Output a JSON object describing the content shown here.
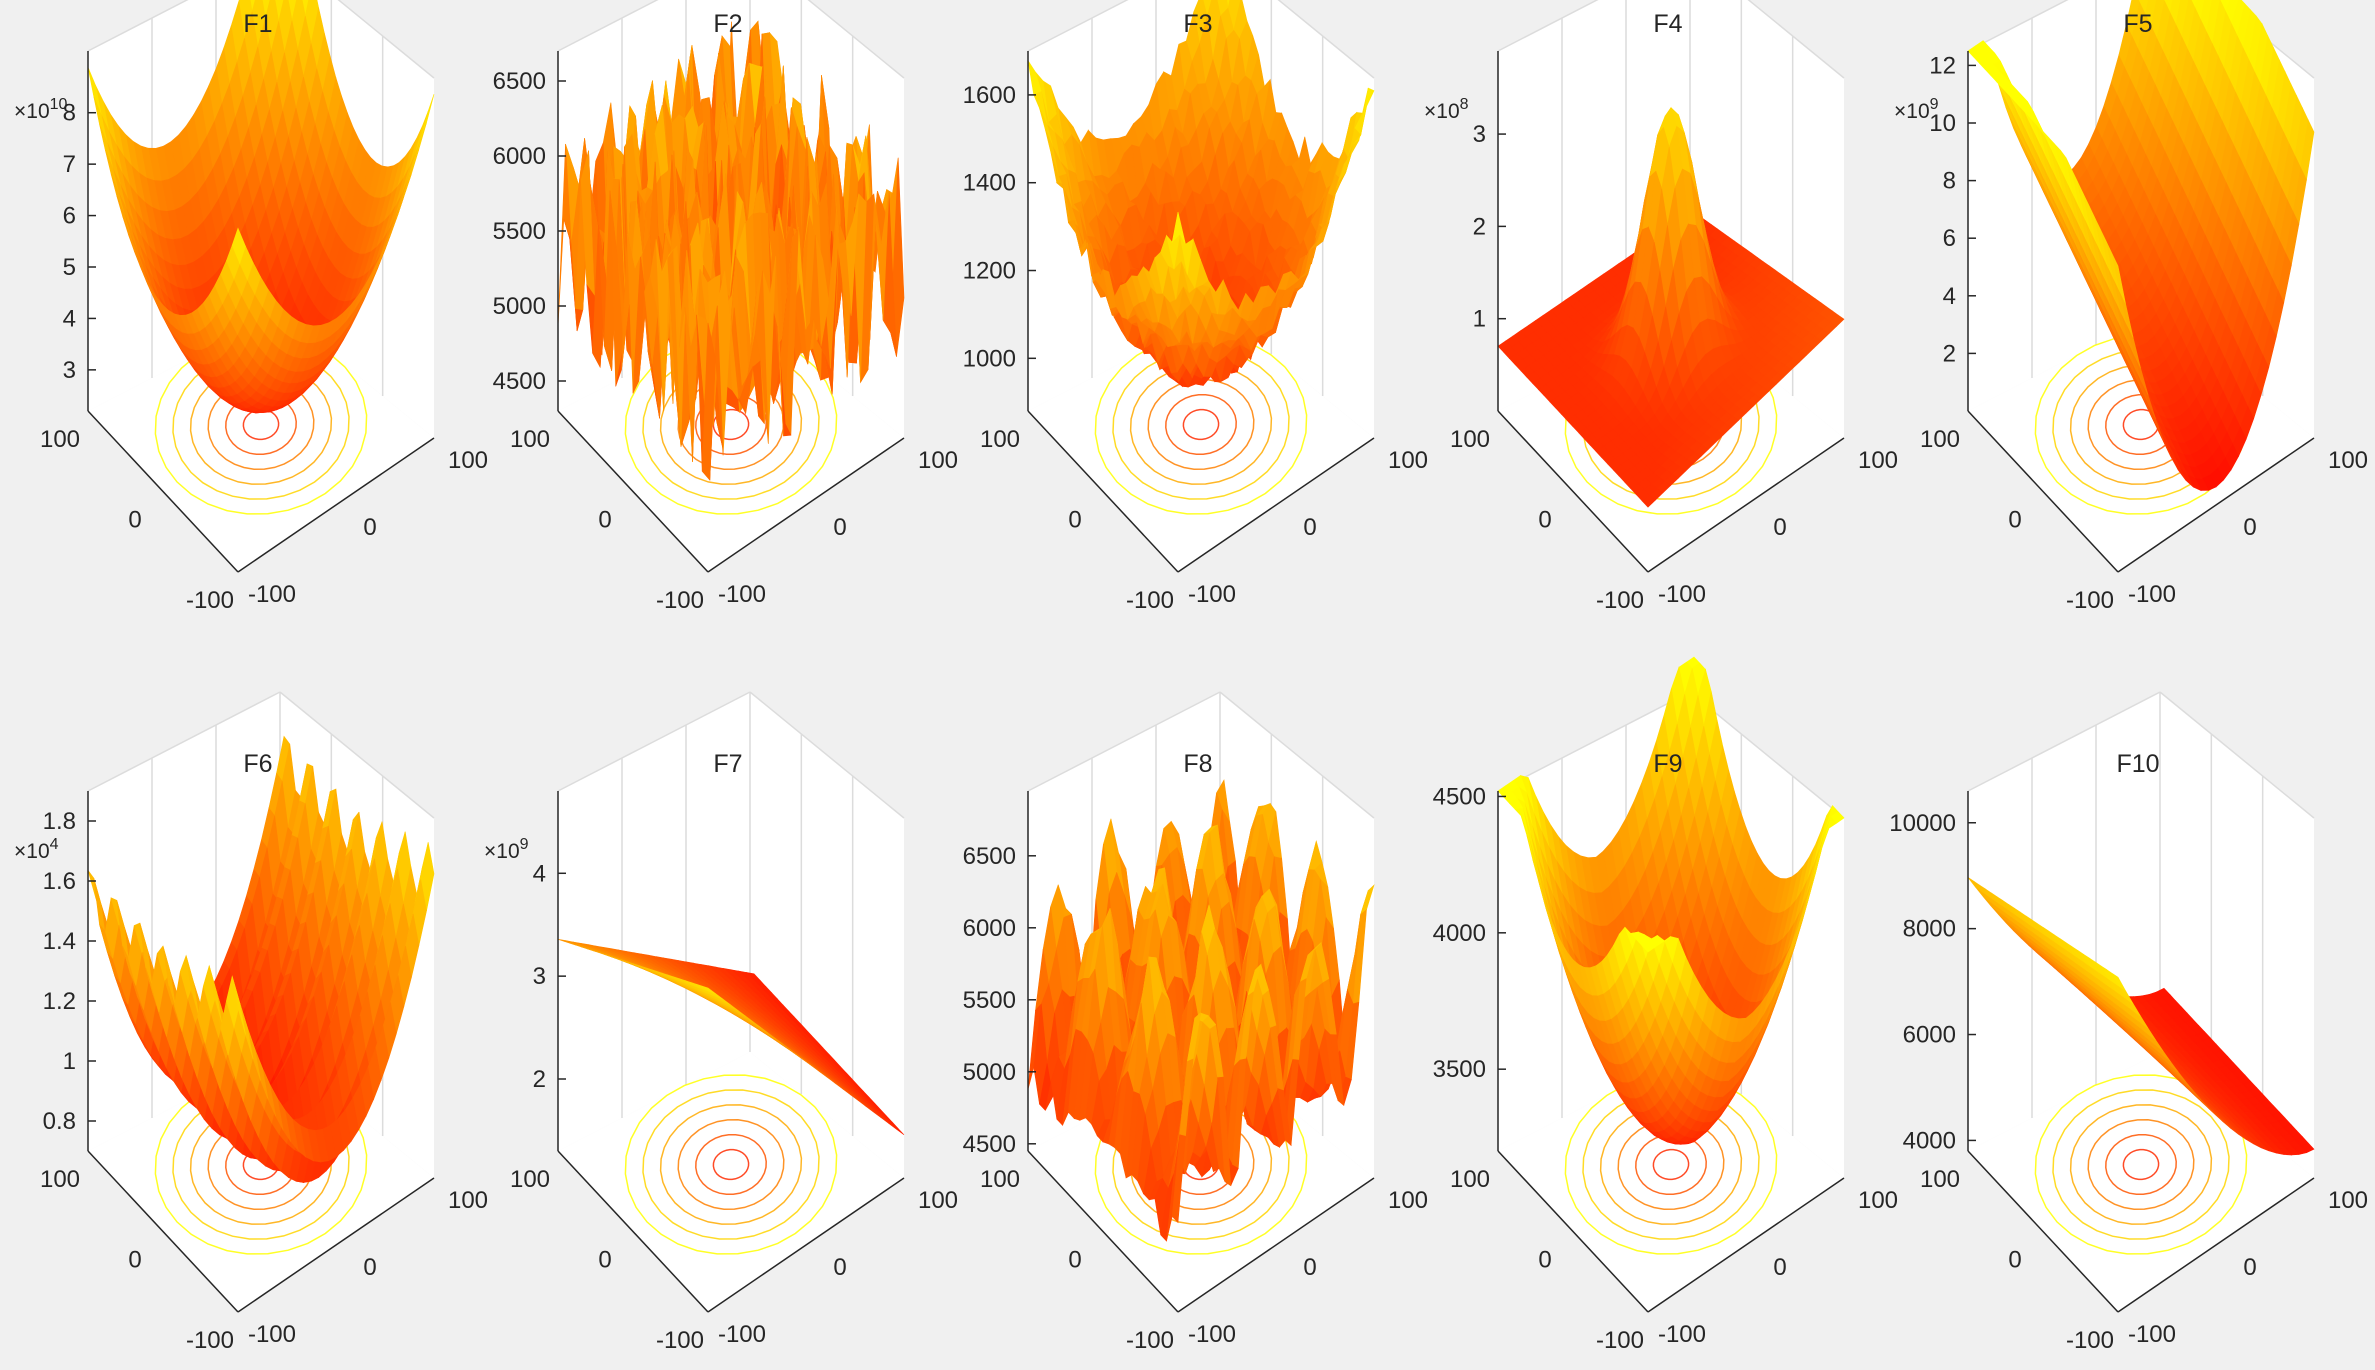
{
  "figure": {
    "background": "#f0f0f0",
    "panel_background": "#ffffff",
    "colormap": "autumn",
    "colors": {
      "low": "#ff0000",
      "high": "#ffff00",
      "axis": "#262626",
      "grid": "#dcdcdc"
    }
  },
  "chart_data": [
    {
      "id": "F1",
      "type": "surface",
      "title": "F1",
      "surface_shape": "bowl",
      "x_range": [
        -100,
        100
      ],
      "y_range": [
        -100,
        100
      ],
      "x_ticks": [
        "-100",
        "0",
        "100"
      ],
      "y_ticks": [
        "-100",
        "0",
        "100"
      ],
      "z_ticks": [
        "3",
        "4",
        "5",
        "6",
        "7",
        "8"
      ],
      "z_exponent": "10",
      "z_range": [
        2.2,
        9.2
      ],
      "contour_floor": true
    },
    {
      "id": "F2",
      "type": "surface",
      "title": "F2",
      "surface_shape": "spiky",
      "x_range": [
        -100,
        100
      ],
      "y_range": [
        -100,
        100
      ],
      "x_ticks": [
        "-100",
        "0",
        "100"
      ],
      "y_ticks": [
        "-100",
        "0",
        "100"
      ],
      "z_ticks": [
        "4500",
        "5000",
        "5500",
        "6000",
        "6500"
      ],
      "z_exponent": "",
      "z_range": [
        4300,
        6700
      ],
      "contour_floor": true
    },
    {
      "id": "F3",
      "type": "surface",
      "title": "F3",
      "surface_shape": "rugged-bowl",
      "x_range": [
        -100,
        100
      ],
      "y_range": [
        -100,
        100
      ],
      "x_ticks": [
        "-100",
        "0",
        "100"
      ],
      "y_ticks": [
        "-100",
        "0",
        "100"
      ],
      "z_ticks": [
        "1000",
        "1200",
        "1400",
        "1600"
      ],
      "z_exponent": "",
      "z_range": [
        880,
        1700
      ],
      "contour_floor": true
    },
    {
      "id": "F4",
      "type": "surface",
      "title": "F4",
      "surface_shape": "peaked",
      "x_range": [
        -100,
        100
      ],
      "y_range": [
        -100,
        100
      ],
      "x_ticks": [
        "-100",
        "0",
        "100"
      ],
      "y_ticks": [
        "-100",
        "0",
        "100"
      ],
      "z_ticks": [
        "1",
        "2",
        "3"
      ],
      "z_exponent": "8",
      "z_range": [
        0,
        3.9
      ],
      "contour_floor": true
    },
    {
      "id": "F5",
      "type": "surface",
      "title": "F5",
      "surface_shape": "valley",
      "x_range": [
        -100,
        100
      ],
      "y_range": [
        -100,
        100
      ],
      "x_ticks": [
        "-100",
        "0",
        "100"
      ],
      "y_ticks": [
        "-100",
        "0",
        "100"
      ],
      "z_ticks": [
        "2",
        "4",
        "6",
        "8",
        "10",
        "12"
      ],
      "z_exponent": "9",
      "z_range": [
        0,
        12.5
      ],
      "contour_floor": true
    },
    {
      "id": "F6",
      "type": "surface",
      "title": "F6",
      "surface_shape": "wavy-valley",
      "x_range": [
        -100,
        100
      ],
      "y_range": [
        -100,
        100
      ],
      "x_ticks": [
        "-100",
        "0",
        "100"
      ],
      "y_ticks": [
        "-100",
        "0",
        "100"
      ],
      "z_ticks": [
        "0.8",
        "1",
        "1.2",
        "1.4",
        "1.6",
        "1.8"
      ],
      "z_exponent": "4",
      "z_range": [
        0.7,
        1.9
      ],
      "contour_floor": true
    },
    {
      "id": "F7",
      "type": "surface",
      "title": "F7",
      "surface_shape": "plane",
      "x_range": [
        -100,
        100
      ],
      "y_range": [
        -100,
        100
      ],
      "x_ticks": [
        "-100",
        "0",
        "100"
      ],
      "y_ticks": [
        "-100",
        "0",
        "100"
      ],
      "z_ticks": [
        "2",
        "3",
        "4"
      ],
      "z_exponent": "9",
      "z_range": [
        1.3,
        4.8
      ],
      "contour_floor": true
    },
    {
      "id": "F8",
      "type": "surface",
      "title": "F8",
      "surface_shape": "multimodal",
      "x_range": [
        -100,
        100
      ],
      "y_range": [
        -100,
        100
      ],
      "x_ticks": [
        "-100",
        "0",
        "100"
      ],
      "y_ticks": [
        "-100",
        "0",
        "100"
      ],
      "z_ticks": [
        "4500",
        "5000",
        "5500",
        "6000",
        "6500"
      ],
      "z_exponent": "",
      "z_range": [
        4450,
        6950
      ],
      "contour_floor": true
    },
    {
      "id": "F9",
      "type": "surface",
      "title": "F9",
      "surface_shape": "smooth-bowl",
      "x_range": [
        -100,
        100
      ],
      "y_range": [
        -100,
        100
      ],
      "x_ticks": [
        "-100",
        "0",
        "100"
      ],
      "y_ticks": [
        "-100",
        "0",
        "100"
      ],
      "z_ticks": [
        "3500",
        "4000",
        "4500"
      ],
      "z_exponent": "",
      "z_range": [
        3200,
        4520
      ],
      "contour_floor": true
    },
    {
      "id": "F10",
      "type": "surface",
      "title": "F10",
      "surface_shape": "sloped-sheet",
      "x_range": [
        -100,
        100
      ],
      "y_range": [
        -100,
        100
      ],
      "x_ticks": [
        "-100",
        "0",
        "100"
      ],
      "y_ticks": [
        "-100",
        "0",
        "100"
      ],
      "z_ticks": [
        "4000",
        "6000",
        "8000",
        "10000"
      ],
      "z_exponent": "",
      "z_range": [
        3800,
        10600
      ],
      "contour_floor": true
    }
  ]
}
